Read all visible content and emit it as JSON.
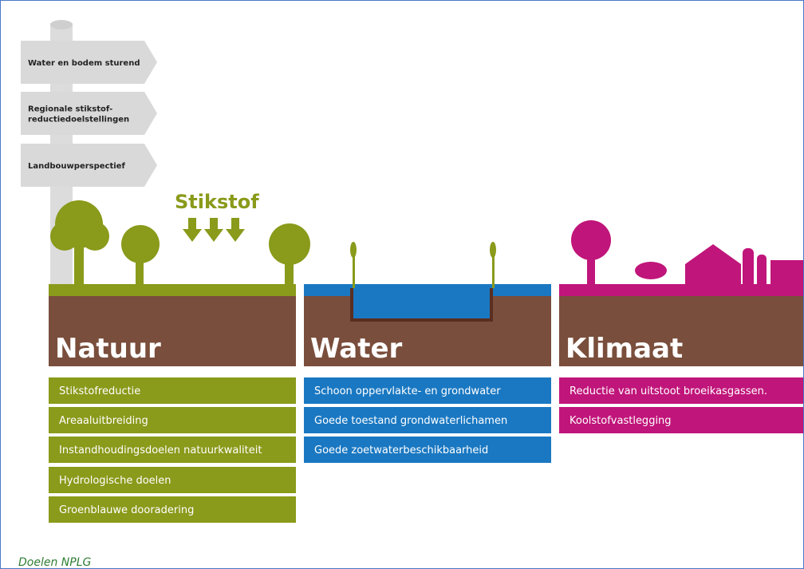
{
  "signs": [
    "Water en bodem sturend",
    "Regionale stikstof-\nreductiedoelstellingen",
    "Landbouwperspectief"
  ],
  "stikstof": "Stikstof",
  "columns": [
    {
      "title": "Natuur",
      "items": [
        "Stikstofreductie",
        "Areaaluitbreiding",
        "Instandhoudingsdoelen natuurkwaliteit",
        "Hydrologische doelen",
        "Groenblauwe dooradering"
      ]
    },
    {
      "title": "Water",
      "items": [
        "Schoon oppervlakte- en grondwater",
        "Goede toestand grondwaterlichamen",
        "Goede zoetwaterbeschikbaarheid"
      ]
    },
    {
      "title": "Klimaat",
      "items": [
        "Reductie van uitstoot broeikasgassen.",
        "Koolstofvastlegging"
      ]
    }
  ],
  "caption": "Doelen NPLG"
}
